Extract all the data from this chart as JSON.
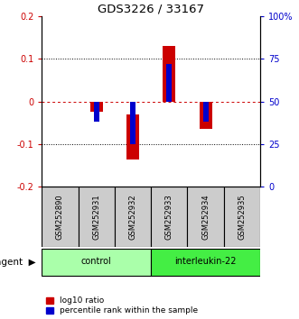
{
  "title": "GDS3226 / 33167",
  "samples": [
    "GSM252890",
    "GSM252931",
    "GSM252932",
    "GSM252933",
    "GSM252934",
    "GSM252935"
  ],
  "log10_ratio": [
    0.0,
    -0.025,
    -0.135,
    0.13,
    -0.065,
    0.0
  ],
  "log10_ratio_base": [
    0.0,
    0.0,
    -0.03,
    0.0,
    0.0,
    0.0
  ],
  "percentile_rank_val": [
    50,
    38,
    25,
    72,
    38,
    50
  ],
  "ylim": [
    -0.2,
    0.2
  ],
  "yticks_left": [
    -0.2,
    -0.1,
    0.0,
    0.1,
    0.2
  ],
  "ytick_labels_left": [
    "-0.2",
    "-0.1",
    "0",
    "0.1",
    "0.2"
  ],
  "ytick_labels_right": [
    "0",
    "25",
    "50",
    "75",
    "100%"
  ],
  "red_color": "#cc0000",
  "blue_color": "#0000cc",
  "group_colors": [
    "#aaffaa",
    "#44ee44"
  ],
  "group_labels": [
    "control",
    "interleukin-22"
  ],
  "group_starts": [
    0,
    3
  ],
  "group_ends": [
    3,
    6
  ],
  "agent_label": "agent",
  "legend_red": "log10 ratio",
  "legend_blue": "percentile rank within the sample",
  "label_area_color": "#cccccc"
}
